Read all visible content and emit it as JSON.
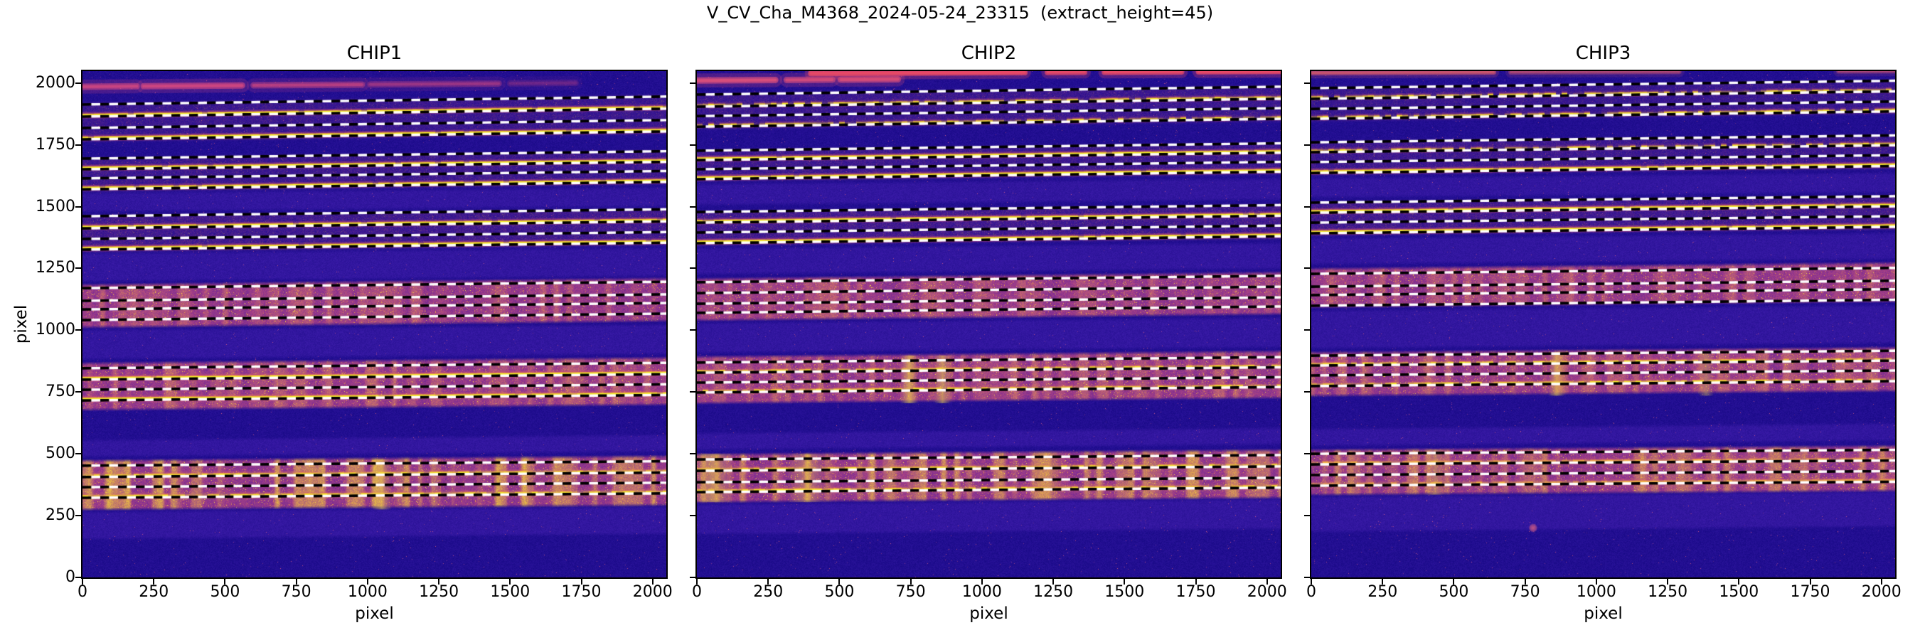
{
  "figure": {
    "suptitle": "V_CV_Cha_M4368_2024-05-24_23315  (extract_height=45)",
    "extract_height": 45,
    "xlabel": "pixel",
    "ylabel": "pixel",
    "x_ticks": [
      0,
      250,
      500,
      750,
      1000,
      1250,
      1500,
      1750,
      2000
    ],
    "y_ticks": [
      0,
      250,
      500,
      750,
      1000,
      1250,
      1500,
      1750,
      2000
    ],
    "axis_max": 2048,
    "background": "#ffffff",
    "text_color": "#000000"
  },
  "chart_data": {
    "type": "heatmap",
    "colormap": "plasma",
    "colors": {
      "heat_low": "#1b0a8c",
      "heat_mid": "#c44e7c",
      "heat_high": "#f2ee2a",
      "trace_core": "#f6f028",
      "trace_mid": "#f2a03c",
      "trace_halo": "#c8497c",
      "dash_black": "#000000",
      "dash_white": "#ffffff"
    },
    "panels": [
      {
        "title": "CHIP1",
        "groups": [
          {
            "lines": [
              1913,
              1864,
              1818,
              1772
            ],
            "rise": 32,
            "band": [
              1757,
              1928
            ],
            "intensity": 0.22,
            "patch": 0,
            "traces": [
              {
                "y": 1869,
                "style": "bright"
              },
              {
                "y": 1777,
                "style": "bright"
              }
            ]
          },
          {
            "lines": [
              1694,
              1651,
              1614,
              1570
            ],
            "rise": 30,
            "band": [
              1555,
              1706
            ],
            "intensity": 0.24,
            "patch": 0,
            "traces": [
              {
                "y": 1656,
                "style": "bright"
              },
              {
                "y": 1575,
                "style": "bright"
              }
            ]
          },
          {
            "lines": [
              1461,
              1412,
              1369,
              1326
            ],
            "rise": 28,
            "band": [
              1311,
              1473
            ],
            "intensity": 0.28,
            "patch": 0,
            "traces": [
              {
                "y": 1417,
                "style": "bright"
              },
              {
                "y": 1331,
                "style": "bright"
              }
            ]
          },
          {
            "lines": [
              1170,
              1119,
              1084,
              1041
            ],
            "rise": 26,
            "band": [
              1007,
              1191
            ],
            "intensity": 1,
            "patch": 0.22,
            "traces": []
          },
          {
            "lines": [
              846,
              800,
              759,
              716
            ],
            "rise": 22,
            "band": [
              673,
              874
            ],
            "intensity": 1,
            "patch": 0.3,
            "traces": [
              {
                "y": 805,
                "style": "bright"
              },
              {
                "y": 721,
                "style": "bright"
              }
            ]
          },
          {
            "lines": [
              452,
              406,
              365,
              322
            ],
            "rise": 18,
            "band": [
              270,
              480
            ],
            "intensity": 1,
            "patch": 0.95,
            "traces": [
              {
                "y": 411,
                "style": "patchy"
              },
              {
                "y": 327,
                "style": "patchy"
              }
            ]
          }
        ],
        "top_streaks": [
          {
            "y": 1985,
            "w": 9,
            "rise": 18,
            "color": "#d84a80",
            "segs": [
              [
                0,
                190,
                0.7
              ],
              [
                215,
                560,
                0.75
              ],
              [
                600,
                980,
                0.55
              ],
              [
                1010,
                1460,
                0.4
              ],
              [
                1500,
                1730,
                0.22
              ]
            ]
          }
        ],
        "vertical_streaks": [
          {
            "x": 1050,
            "w": 40,
            "y0": 275,
            "y1": 478,
            "alpha": 0.5
          }
        ],
        "light_bands": [
          [
            1475,
            1562
          ],
          [
            1192,
            1318
          ],
          [
            878,
            1008
          ],
          [
            484,
            562
          ],
          [
            150,
            272
          ]
        ],
        "dot": null
      },
      {
        "title": "CHIP2",
        "groups": [
          {
            "lines": [
              1953,
              1904,
              1866,
              1823
            ],
            "rise": 32,
            "band": [
              1808,
              1966
            ],
            "intensity": 0.22,
            "patch": 0,
            "traces": [
              {
                "y": 1909,
                "style": "patchy"
              },
              {
                "y": 1828,
                "style": "patchy"
              }
            ]
          },
          {
            "lines": [
              1726,
              1688,
              1651,
              1611
            ],
            "rise": 30,
            "band": [
              1596,
              1738
            ],
            "intensity": 0.24,
            "patch": 0,
            "traces": [
              {
                "y": 1693,
                "style": "bright"
              },
              {
                "y": 1616,
                "style": "bright"
              }
            ]
          },
          {
            "lines": [
              1478,
              1435,
              1395,
              1352
            ],
            "rise": 28,
            "band": [
              1337,
              1490
            ],
            "intensity": 0.28,
            "patch": 0,
            "traces": [
              {
                "y": 1440,
                "style": "bright"
              },
              {
                "y": 1357,
                "style": "bright"
              }
            ]
          },
          {
            "lines": [
              1194,
              1150,
              1107,
              1070
            ],
            "rise": 26,
            "band": [
              1035,
              1215
            ],
            "intensity": 1,
            "patch": 0.22,
            "traces": []
          },
          {
            "lines": [
              869,
              828,
              788,
              748
            ],
            "rise": 22,
            "band": [
              700,
              900
            ],
            "intensity": 1,
            "patch": 0.3,
            "traces": [
              {
                "y": 833,
                "style": "patchy"
              },
              {
                "y": 753,
                "style": "patchy"
              }
            ]
          },
          {
            "lines": [
              477,
              431,
              385,
              345
            ],
            "rise": 18,
            "band": [
              300,
              505
            ],
            "intensity": 1,
            "patch": 0.7,
            "traces": [
              {
                "y": 436,
                "style": "patchy"
              },
              {
                "y": 350,
                "style": "patchy"
              }
            ]
          }
        ],
        "top_streaks": [
          {
            "y": 2010,
            "w": 9,
            "rise": 14,
            "color": "#e0517a",
            "segs": [
              [
                0,
                275,
                0.8
              ],
              [
                315,
                475,
                0.7
              ],
              [
                505,
                705,
                0.75
              ]
            ]
          },
          {
            "y": 2037,
            "w": 8,
            "rise": 10,
            "color": "#e84a66",
            "segs": [
              [
                400,
                1150,
                0.95
              ],
              [
                1230,
                1360,
                0.85
              ],
              [
                1430,
                1700,
                0.9
              ],
              [
                1760,
                2048,
                0.95
              ]
            ]
          }
        ],
        "vertical_streaks": [
          {
            "x": 745,
            "w": 34,
            "y0": 705,
            "y1": 898,
            "alpha": 0.6
          },
          {
            "x": 862,
            "w": 28,
            "y0": 705,
            "y1": 898,
            "alpha": 0.55
          },
          {
            "x": 55,
            "w": 120,
            "y0": 305,
            "y1": 500,
            "alpha": 0.5
          },
          {
            "x": 385,
            "w": 110,
            "y0": 305,
            "y1": 500,
            "alpha": 0.4
          }
        ],
        "light_bands": [
          [
            1502,
            1598
          ],
          [
            1222,
            1338
          ],
          [
            905,
            1036
          ],
          [
            512,
            590
          ],
          [
            170,
            302
          ]
        ],
        "dot": null
      },
      {
        "title": "CHIP3",
        "groups": [
          {
            "lines": [
              1979,
              1936,
              1895,
              1855
            ],
            "rise": 30,
            "band": [
              1840,
              1992
            ],
            "intensity": 0.2,
            "patch": 0,
            "traces": [
              {
                "y": 1941,
                "style": "patchy"
              },
              {
                "y": 1860,
                "style": "patchy"
              }
            ]
          },
          {
            "lines": [
              1760,
              1720,
              1680,
              1636
            ],
            "rise": 28,
            "band": [
              1621,
              1772
            ],
            "intensity": 0.24,
            "patch": 0,
            "traces": [
              {
                "y": 1725,
                "style": "patchy"
              },
              {
                "y": 1641,
                "style": "bright"
              }
            ]
          },
          {
            "lines": [
              1516,
              1475,
              1435,
              1392
            ],
            "rise": 26,
            "band": [
              1377,
              1528
            ],
            "intensity": 0.28,
            "patch": 0,
            "traces": [
              {
                "y": 1480,
                "style": "bright"
              },
              {
                "y": 1397,
                "style": "bright"
              }
            ]
          },
          {
            "lines": [
              1228,
              1176,
              1142,
              1099
            ],
            "rise": 24,
            "band": [
              1088,
              1256
            ],
            "intensity": 1,
            "patch": 0.22,
            "traces": []
          },
          {
            "lines": [
              897,
              857,
              817,
              774
            ],
            "rise": 20,
            "band": [
              730,
              917
            ],
            "intensity": 1,
            "patch": 0.3,
            "traces": [
              {
                "y": 862,
                "style": "patchy"
              },
              {
                "y": 779,
                "style": "patchy"
              }
            ]
          },
          {
            "lines": [
              500,
              457,
              414,
              371
            ],
            "rise": 16,
            "band": [
              330,
              523
            ],
            "intensity": 1,
            "patch": 0.55,
            "traces": [
              {
                "y": 462,
                "style": "orange"
              },
              {
                "y": 376,
                "style": "orange"
              }
            ]
          }
        ],
        "top_streaks": [
          {
            "y": 2041,
            "w": 7,
            "rise": 8,
            "color": "#df5e68",
            "segs": [
              [
                0,
                640,
                0.65
              ],
              [
                700,
                1290,
                0.45
              ],
              [
                1850,
                2048,
                0.45
              ]
            ]
          }
        ],
        "vertical_streaks": [
          {
            "x": 860,
            "w": 30,
            "y0": 735,
            "y1": 912,
            "alpha": 0.55
          },
          {
            "x": 1385,
            "w": 26,
            "y0": 735,
            "y1": 912,
            "alpha": 0.4
          },
          {
            "x": 435,
            "w": 28,
            "y0": 335,
            "y1": 518,
            "alpha": 0.45
          }
        ],
        "light_bands": [
          [
            1532,
            1622
          ],
          [
            1262,
            1378
          ],
          [
            922,
            1086
          ],
          [
            528,
            608
          ],
          [
            180,
            332
          ]
        ],
        "dot": {
          "x": 778,
          "y": 200,
          "r": 16,
          "color": "#cf5a82"
        }
      }
    ]
  }
}
